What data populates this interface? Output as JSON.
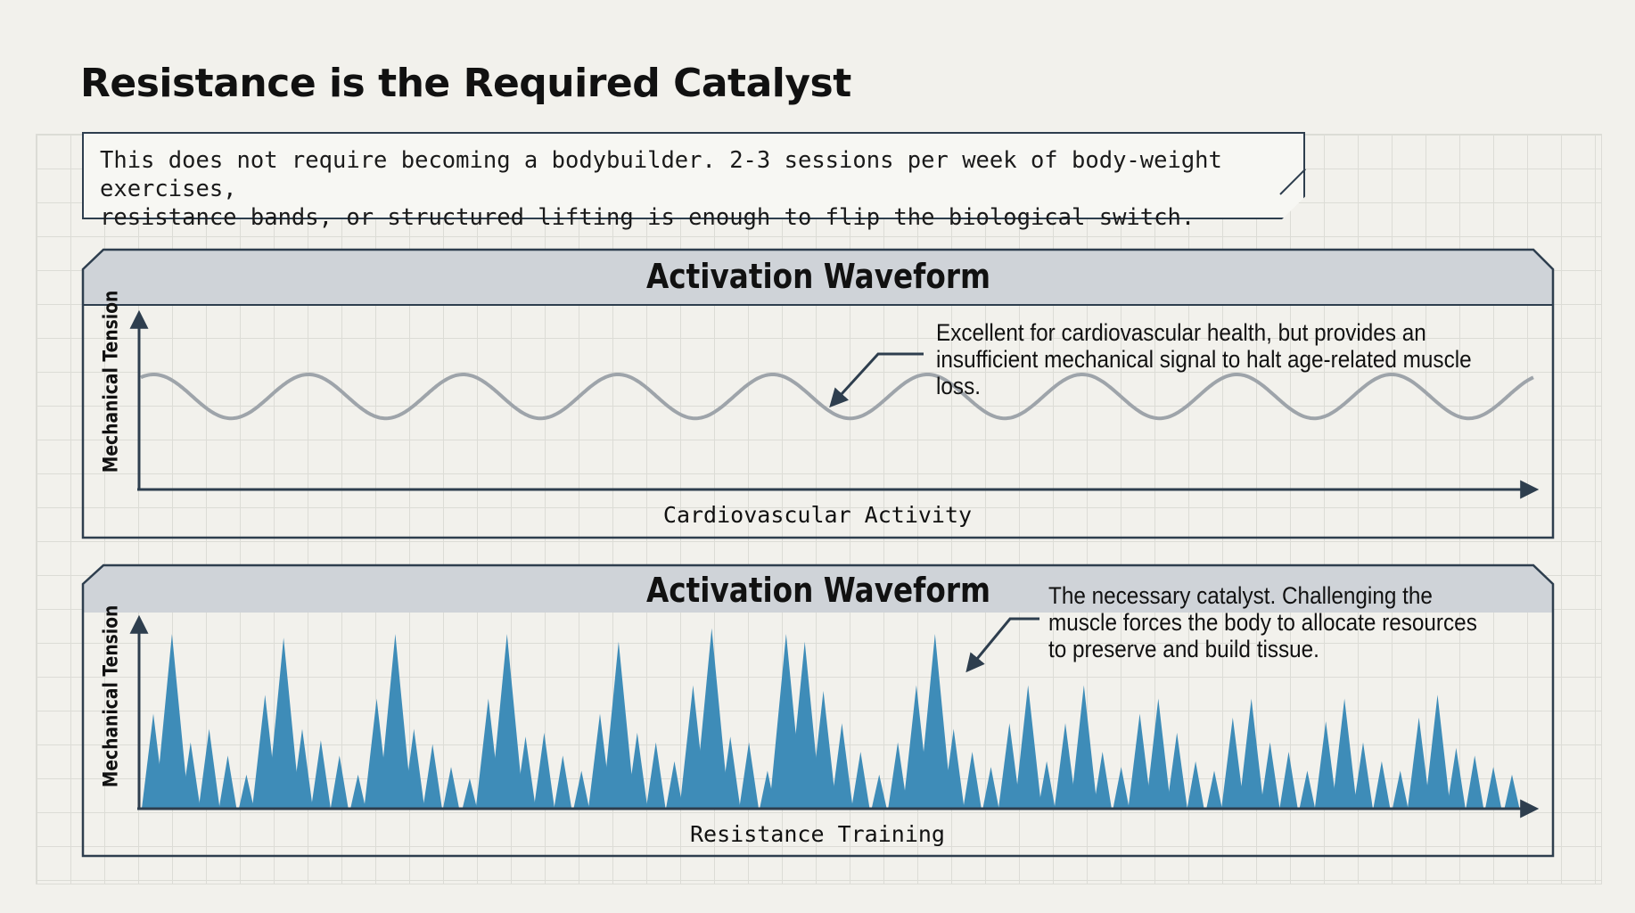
{
  "page": {
    "title": "Resistance is the Required Catalyst"
  },
  "intro": {
    "line1": "This does not require becoming a bodybuilder. 2-3 sessions per week of body-weight exercises,",
    "line2": "resistance bands, or structured lifting is enough to flip the biological switch."
  },
  "colors": {
    "ink": "#2e3e4e",
    "header_fill": "#cfd3d8",
    "cardio_wave": "#9ea4aa",
    "resistance_fill": "#3e8cb8",
    "page_bg": "#f2f1ec"
  },
  "panels": [
    {
      "header": "Activation Waveform",
      "y_label": "Mechanical Tension",
      "x_label": "Cardiovascular Activity",
      "annotation": "Excellent for cardiovascular health, but provides an insufficient mechanical signal to halt age-related muscle loss.",
      "waveform": {
        "type": "sine",
        "cycles": 9,
        "amplitude": 0.25,
        "baseline": 0.53
      }
    },
    {
      "header": "Activation Waveform",
      "y_label": "Mechanical Tension",
      "x_label": "Resistance Training",
      "annotation": "The necessary catalyst. Challenging the muscle forces the body to allocate resources to preserve and build tissue.",
      "waveform": {
        "type": "spikes",
        "peaks": [
          0.5,
          0.92,
          0.35,
          0.42,
          0.28,
          0.18,
          0.6,
          0.9,
          0.42,
          0.36,
          0.28,
          0.18,
          0.58,
          0.92,
          0.42,
          0.34,
          0.22,
          0.16,
          0.58,
          0.92,
          0.38,
          0.4,
          0.28,
          0.2,
          0.5,
          0.88,
          0.4,
          0.35,
          0.25,
          0.65,
          0.95,
          0.38,
          0.35,
          0.2,
          0.92,
          0.88,
          0.62,
          0.45,
          0.3,
          0.18,
          0.35,
          0.65,
          0.92,
          0.42,
          0.3,
          0.22,
          0.45,
          0.65,
          0.25,
          0.45,
          0.65,
          0.3,
          0.22,
          0.5,
          0.58,
          0.4,
          0.25,
          0.2,
          0.48,
          0.58,
          0.35,
          0.3,
          0.2,
          0.46,
          0.58,
          0.35,
          0.25,
          0.2,
          0.48,
          0.6,
          0.32,
          0.28,
          0.22,
          0.18
        ]
      }
    }
  ]
}
